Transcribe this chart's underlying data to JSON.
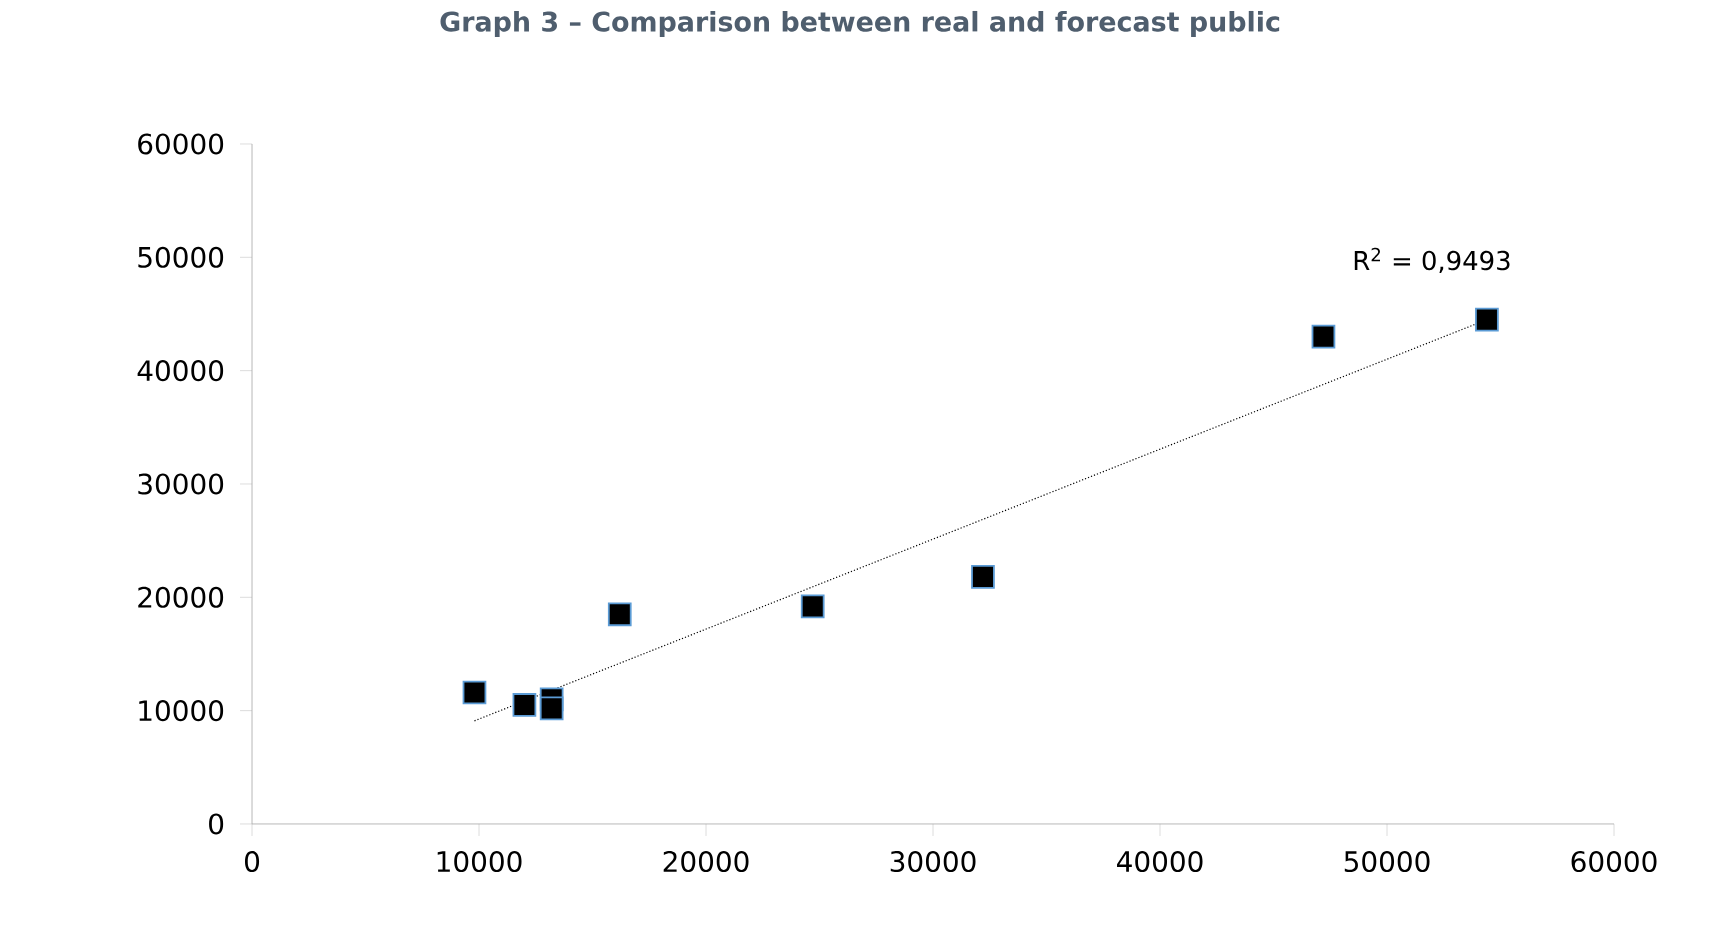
{
  "chart_data": {
    "type": "scatter",
    "title": "Graph 3 – Comparison between real and forecast public",
    "annotations": [
      "R$^{2}$ = 0,9493"
    ],
    "series": [
      {
        "color": "#000000",
        "marker": "square",
        "x": [
          9800,
          12000,
          13200,
          13200,
          16200,
          24700,
          32200,
          47200,
          54400
        ],
        "values": [
          11600,
          10500,
          11000,
          10200,
          18500,
          19200,
          21800,
          43000,
          44500
        ]
      },
      {
        "type": "line",
        "color": "#000000",
        "line_style": "dotted",
        "marker": "none",
        "x": [
          9800,
          54400
        ],
        "values": [
          9100,
          44500
        ]
      }
    ],
    "xlim": [
      0,
      60000
    ],
    "ylim": [
      0,
      60000
    ],
    "xticks": [
      0,
      10000,
      20000,
      30000,
      40000,
      50000,
      60000
    ],
    "yticks": [
      0,
      10000,
      20000,
      30000,
      40000,
      50000,
      60000
    ],
    "grid": false
  }
}
